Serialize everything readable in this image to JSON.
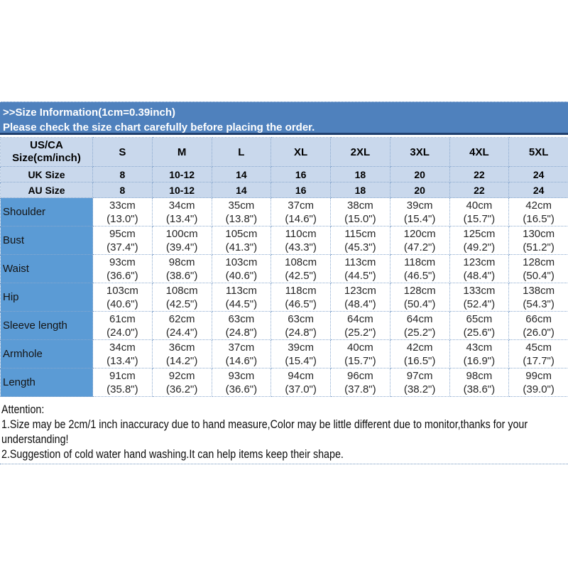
{
  "banner": {
    "title": ">>Size Information(1cm=0.39inch)",
    "subtitle": "Please check the size chart carefully before placing the order."
  },
  "table": {
    "corner_line1": "US/CA",
    "corner_line2": "Size(cm/inch)",
    "size_columns": [
      "S",
      "M",
      "L",
      "XL",
      "2XL",
      "3XL",
      "4XL",
      "5XL"
    ],
    "uk_row": {
      "label": "UK Size",
      "values": [
        "8",
        "10-12",
        "14",
        "16",
        "18",
        "20",
        "22",
        "24"
      ]
    },
    "au_row": {
      "label": "AU Size",
      "values": [
        "8",
        "10-12",
        "14",
        "16",
        "18",
        "20",
        "22",
        "24"
      ]
    },
    "measurement_rows": [
      {
        "label": "Shoulder",
        "cm": [
          "33cm",
          "34cm",
          "35cm",
          "37cm",
          "38cm",
          "39cm",
          "40cm",
          "42cm"
        ],
        "inch": [
          "(13.0\")",
          "(13.4\")",
          "(13.8\")",
          "(14.6\")",
          "(15.0\")",
          "(15.4\")",
          "(15.7\")",
          "(16.5\")"
        ]
      },
      {
        "label": "Bust",
        "cm": [
          "95cm",
          "100cm",
          "105cm",
          "110cm",
          "115cm",
          "120cm",
          "125cm",
          "130cm"
        ],
        "inch": [
          "(37.4\")",
          "(39.4\")",
          "(41.3\")",
          "(43.3\")",
          "(45.3\")",
          "(47.2\")",
          "(49.2\")",
          "(51.2\")"
        ]
      },
      {
        "label": "Waist",
        "cm": [
          "93cm",
          "98cm",
          "103cm",
          "108cm",
          "113cm",
          "118cm",
          "123cm",
          "128cm"
        ],
        "inch": [
          "(36.6\")",
          "(38.6\")",
          "(40.6\")",
          "(42.5\")",
          "(44.5\")",
          "(46.5\")",
          "(48.4\")",
          "(50.4\")"
        ]
      },
      {
        "label": "Hip",
        "cm": [
          "103cm",
          "108cm",
          "113cm",
          "118cm",
          "123cm",
          "128cm",
          "133cm",
          "138cm"
        ],
        "inch": [
          "(40.6\")",
          "(42.5\")",
          "(44.5\")",
          "(46.5\")",
          "(48.4\")",
          "(50.4\")",
          "(52.4\")",
          "(54.3\")"
        ]
      },
      {
        "label": "Sleeve length",
        "cm": [
          "61cm",
          "62cm",
          "63cm",
          "63cm",
          "64cm",
          "64cm",
          "65cm",
          "66cm"
        ],
        "inch": [
          "(24.0\")",
          "(24.4\")",
          "(24.8\")",
          "(24.8\")",
          "(25.2\")",
          "(25.2\")",
          "(25.6\")",
          "(26.0\")"
        ]
      },
      {
        "label": "Armhole",
        "cm": [
          "34cm",
          "36cm",
          "37cm",
          "39cm",
          "40cm",
          "42cm",
          "43cm",
          "45cm"
        ],
        "inch": [
          "(13.4\")",
          "(14.2\")",
          "(14.6\")",
          "(15.4\")",
          "(15.7\")",
          "(16.5\")",
          "(16.9\")",
          "(17.7\")"
        ]
      },
      {
        "label": "Length",
        "cm": [
          "91cm",
          "92cm",
          "93cm",
          "94cm",
          "96cm",
          "97cm",
          "98cm",
          "99cm"
        ],
        "inch": [
          "(35.8\")",
          "(36.2\")",
          "(36.6\")",
          "(37.0\")",
          "(37.8\")",
          "(38.2\")",
          "(38.6\")",
          "(39.0\")"
        ]
      }
    ]
  },
  "attention": {
    "title": "Attention:",
    "note1": "1.Size may be 2cm/1 inch inaccuracy due to hand measure,Color may be little different due to monitor,thanks for your understanding!",
    "note2": "2.Suggestion of cold water hand washing.It can help items keep their shape."
  },
  "colors": {
    "banner_bg": "#4f81bd",
    "banner_border": "#1f3f6e",
    "header_bg": "#c9d8ec",
    "row_label_bg": "#5b9bd5",
    "grid_dotted": "#8aa9cf"
  }
}
